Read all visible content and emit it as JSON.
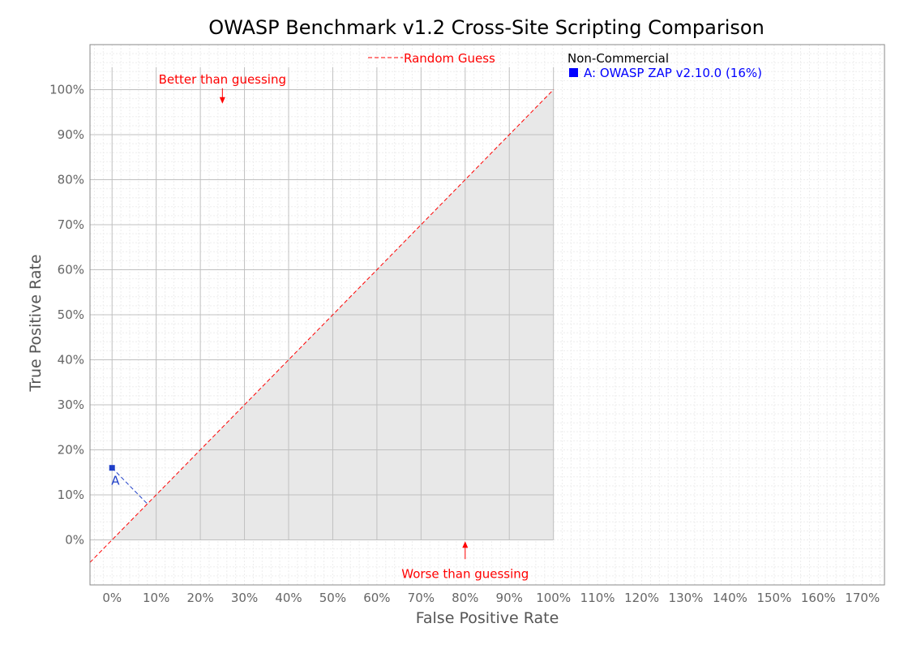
{
  "chart_data": {
    "type": "scatter",
    "title": "OWASP Benchmark v1.2 Cross-Site Scripting Comparison",
    "xlabel": "False Positive Rate",
    "ylabel": "True Positive Rate",
    "xlim": [
      -0.05,
      1.75
    ],
    "ylim": [
      -0.1,
      1.1
    ],
    "x_ticks": [
      0,
      0.1,
      0.2,
      0.3,
      0.4,
      0.5,
      0.6,
      0.7,
      0.8,
      0.9,
      1.0,
      1.1,
      1.2,
      1.3,
      1.4,
      1.5,
      1.6,
      1.7
    ],
    "x_tick_labels": [
      "0%",
      "10%",
      "20%",
      "30%",
      "40%",
      "50%",
      "60%",
      "70%",
      "80%",
      "90%",
      "100%",
      "110%",
      "120%",
      "130%",
      "140%",
      "150%",
      "160%",
      "170%"
    ],
    "y_ticks": [
      0,
      0.1,
      0.2,
      0.3,
      0.4,
      0.5,
      0.6,
      0.7,
      0.8,
      0.9,
      1.0
    ],
    "y_tick_labels": [
      "0%",
      "10%",
      "20%",
      "30%",
      "40%",
      "50%",
      "60%",
      "70%",
      "80%",
      "90%",
      "100%"
    ],
    "grid": true,
    "reference_line": {
      "name": "Random Guess",
      "color": "#ff0000"
    },
    "annotations": {
      "better": {
        "text": "Better than guessing",
        "x": 0.25,
        "y": 1.05,
        "arrow": "down"
      },
      "worse": {
        "text": "Worse than guessing",
        "x": 0.8,
        "y": -0.05,
        "arrow": "up"
      }
    },
    "legend": {
      "placement": "top-right",
      "heading": "Non-Commercial",
      "entries": [
        "A: OWASP ZAP v2.10.0 (16%)"
      ]
    },
    "points": [
      {
        "label": "A",
        "x": 0.0,
        "y": 0.16,
        "color": "#1f3fc8"
      }
    ],
    "colors": {
      "point": "#1f3fc8",
      "random_guess": "#ff0000",
      "shaded_region": "#e8e8e8",
      "legend_text": "#0000ff"
    }
  }
}
